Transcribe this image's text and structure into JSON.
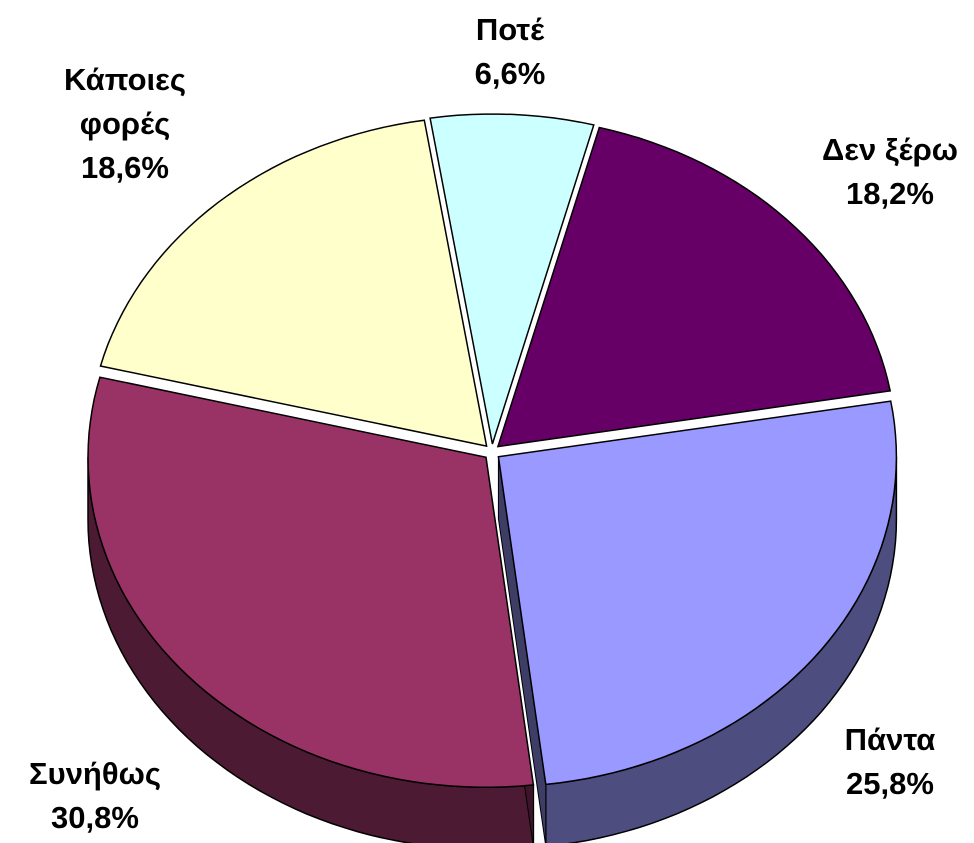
{
  "chart_data": {
    "type": "pie",
    "categories": [
      "Ποτέ",
      "Δεν ξέρω",
      "Πάντα",
      "Συνήθως",
      "Κάποιες φορές"
    ],
    "values": [
      6.6,
      18.2,
      25.8,
      30.8,
      18.6
    ],
    "value_labels": [
      "6,6%",
      "18,2%",
      "25,8%",
      "30,8%",
      "18,6%"
    ],
    "colors": [
      "#ccffff",
      "#660066",
      "#9999ff",
      "#993366",
      "#ffffcc"
    ]
  }
}
